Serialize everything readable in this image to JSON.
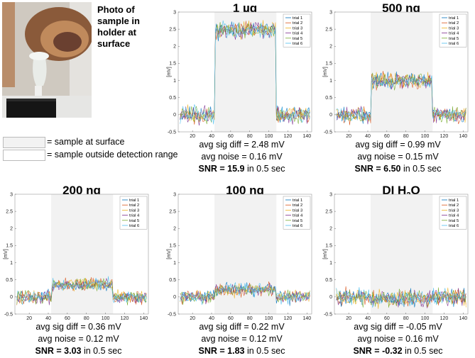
{
  "photo": {
    "caption": "Photo of sample in holder at surface"
  },
  "legend": {
    "surface": "= sample at surface",
    "outside": "= sample outside detection range",
    "surface_color": "#f2f2f2",
    "outside_color": "#ffffff"
  },
  "series_colors": [
    "#0072BD",
    "#D95319",
    "#EDB120",
    "#7E2F8E",
    "#77AC30",
    "#4DBEEE"
  ],
  "chart_data": [
    {
      "type": "line",
      "title": "1 µg",
      "ylabel": "[mV]",
      "xlim": [
        5,
        145
      ],
      "ylim": [
        -0.5,
        3
      ],
      "xticks": [
        20,
        40,
        60,
        80,
        100,
        120,
        140
      ],
      "yticks": [
        -0.5,
        0,
        0.5,
        1,
        1.5,
        2,
        2.5,
        3
      ],
      "shaded_range": [
        43,
        108
      ],
      "baseline_mean": 0.0,
      "plateau_mean": 2.48,
      "series": [
        {
          "name": "trial 1"
        },
        {
          "name": "trial 2"
        },
        {
          "name": "trial 3"
        },
        {
          "name": "trial 4"
        },
        {
          "name": "trial 5"
        },
        {
          "name": "trial 6"
        }
      ],
      "stats": {
        "sig_label": "avg sig diff = 2.48 mV",
        "noise_label": "avg noise = 0.16 mV",
        "snr_bold": "SNR = 15.9",
        "snr_rest": " in 0.5 sec"
      }
    },
    {
      "type": "line",
      "title": "500 ng",
      "ylabel": "[mV]",
      "xlim": [
        5,
        145
      ],
      "ylim": [
        -0.5,
        3
      ],
      "xticks": [
        20,
        40,
        60,
        80,
        100,
        120,
        140
      ],
      "yticks": [
        -0.5,
        0,
        0.5,
        1,
        1.5,
        2,
        2.5,
        3
      ],
      "shaded_range": [
        43,
        108
      ],
      "baseline_mean": 0.0,
      "plateau_mean": 0.99,
      "series": [
        {
          "name": "trial 1"
        },
        {
          "name": "trial 2"
        },
        {
          "name": "trial 3"
        },
        {
          "name": "trial 4"
        },
        {
          "name": "trial 5"
        },
        {
          "name": "trial 6"
        }
      ],
      "stats": {
        "sig_label": "avg sig diff = 0.99 mV",
        "noise_label": "avg noise = 0.15 mV",
        "snr_bold": "SNR = 6.50",
        "snr_rest": " in 0.5 sec"
      }
    },
    {
      "type": "line",
      "title": "200 ng",
      "ylabel": "[mV]",
      "xlim": [
        5,
        145
      ],
      "ylim": [
        -0.5,
        3
      ],
      "xticks": [
        20,
        40,
        60,
        80,
        100,
        120,
        140
      ],
      "yticks": [
        -0.5,
        0,
        0.5,
        1,
        1.5,
        2,
        2.5,
        3
      ],
      "shaded_range": [
        43,
        108
      ],
      "baseline_mean": 0.0,
      "plateau_mean": 0.36,
      "series": [
        {
          "name": "trial 1"
        },
        {
          "name": "trial 2"
        },
        {
          "name": "trial 3"
        },
        {
          "name": "trial 4"
        },
        {
          "name": "trial 5"
        },
        {
          "name": "trial 6"
        }
      ],
      "stats": {
        "sig_label": "avg sig diff = 0.36 mV",
        "noise_label": "avg noise = 0.12 mV",
        "snr_bold": "SNR = 3.03",
        "snr_rest": " in 0.5 sec"
      }
    },
    {
      "type": "line",
      "title": "100 ng",
      "ylabel": "[mV]",
      "xlim": [
        5,
        145
      ],
      "ylim": [
        -0.5,
        3
      ],
      "xticks": [
        20,
        40,
        60,
        80,
        100,
        120,
        140
      ],
      "yticks": [
        -0.5,
        0,
        0.5,
        1,
        1.5,
        2,
        2.5,
        3
      ],
      "shaded_range": [
        43,
        108
      ],
      "baseline_mean": 0.0,
      "plateau_mean": 0.22,
      "series": [
        {
          "name": "trial 1"
        },
        {
          "name": "trial 2"
        },
        {
          "name": "trial 3"
        },
        {
          "name": "trial 4"
        },
        {
          "name": "trial 5"
        },
        {
          "name": "trial 6"
        }
      ],
      "stats": {
        "sig_label": "avg sig diff = 0.22 mV",
        "noise_label": "avg noise = 0.12 mV",
        "snr_bold": "SNR = 1.83",
        "snr_rest": " in 0.5 sec"
      }
    },
    {
      "type": "line",
      "title": "DI H",
      "title_sub": "2",
      "title_tail": "O",
      "ylabel": "[mV]",
      "xlim": [
        5,
        145
      ],
      "ylim": [
        -0.5,
        3
      ],
      "xticks": [
        20,
        40,
        60,
        80,
        100,
        120,
        140
      ],
      "yticks": [
        -0.5,
        0,
        0.5,
        1,
        1.5,
        2,
        2.5,
        3
      ],
      "shaded_range": [
        43,
        108
      ],
      "baseline_mean": 0.0,
      "plateau_mean": -0.05,
      "series": [
        {
          "name": "trial 1"
        },
        {
          "name": "trial 2"
        },
        {
          "name": "trial 3"
        },
        {
          "name": "trial 4"
        },
        {
          "name": "trial 5"
        },
        {
          "name": "trial 6"
        }
      ],
      "stats": {
        "sig_label": "avg sig diff = -0.05 mV",
        "noise_label": "avg noise = 0.16 mV",
        "snr_bold": "SNR = -0.32",
        "snr_rest": " in 0.5 sec"
      }
    }
  ]
}
